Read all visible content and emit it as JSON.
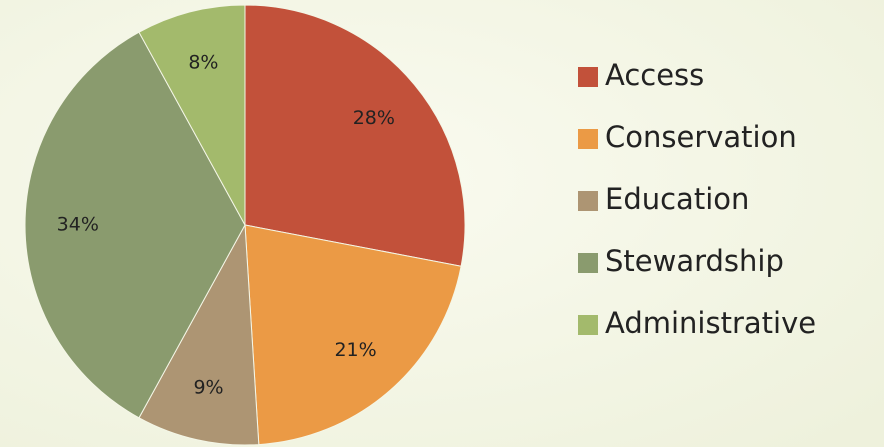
{
  "chart_data": {
    "type": "pie",
    "categories": [
      "Access",
      "Conservation",
      "Education",
      "Stewardship",
      "Administrative"
    ],
    "values": [
      28,
      21,
      9,
      34,
      8
    ],
    "value_labels": [
      "28%",
      "21%",
      "9%",
      "34%",
      "8%"
    ],
    "colors": [
      "#c2513a",
      "#eb9a45",
      "#ad9573",
      "#8a9b6e",
      "#a3ba6c"
    ],
    "legend": "right"
  }
}
